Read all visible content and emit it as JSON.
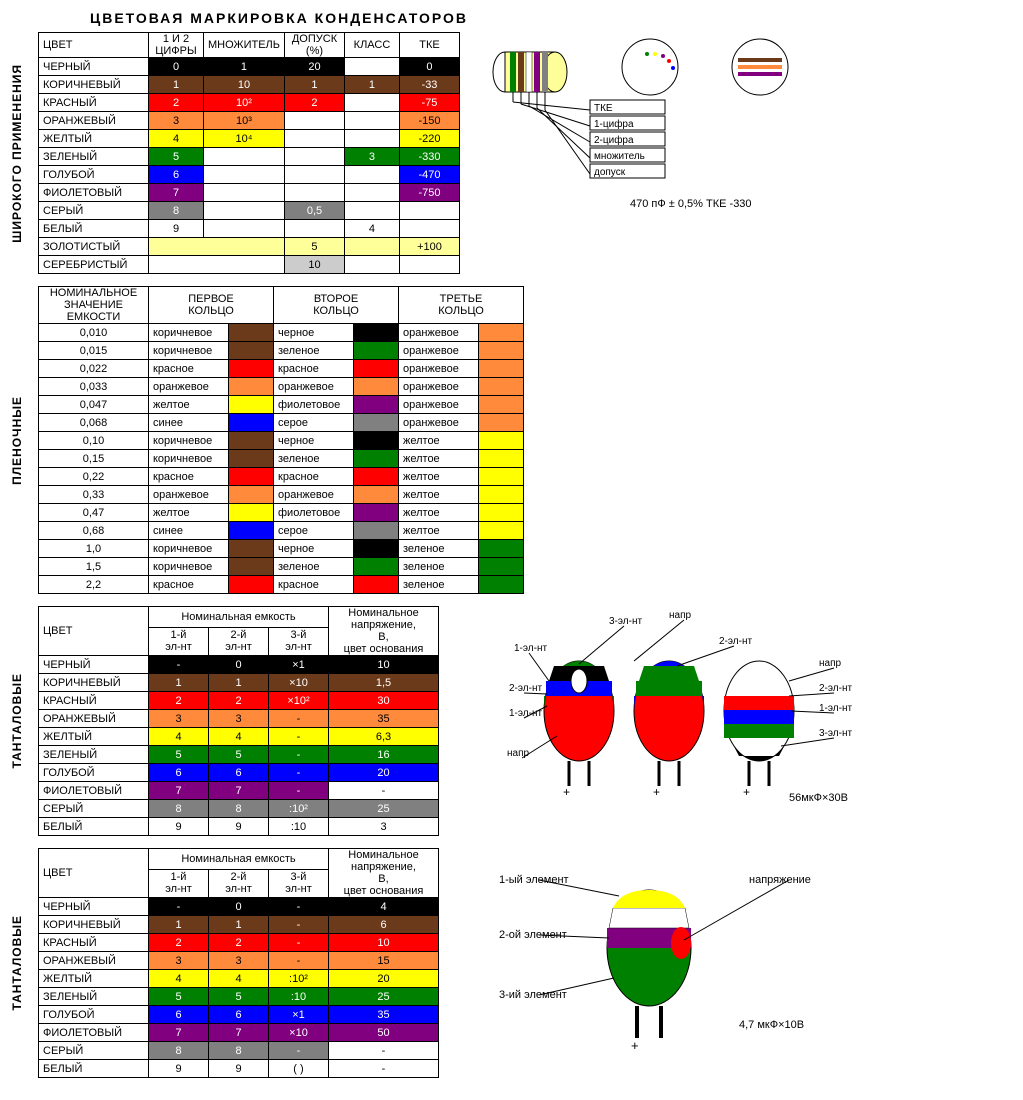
{
  "title": "ЦВЕТОВАЯ МАРКИРОВКА КОНДЕНСАТОРОВ",
  "colors": {
    "black": "#000000",
    "brown": "#6b3a1a",
    "red": "#ff0000",
    "orange": "#ff8a3c",
    "yellow": "#ffff00",
    "green": "#008000",
    "blue": "#0000ff",
    "violet": "#800080",
    "gray": "#808080",
    "white": "#ffffff",
    "gold": "#ffff99",
    "silver": "#cccccc"
  },
  "section1": {
    "label": "ШИРОКОГО ПРИМЕНЕНИЯ",
    "headers": [
      "ЦВЕТ",
      "1 И 2 ЦИФРЫ",
      "МНОЖИТЕЛЬ",
      "ДОПУСК (%)",
      "КЛАСС",
      "ТКЕ"
    ],
    "rows": [
      {
        "name": "ЧЕРНЫЙ",
        "c": "black",
        "dig": "0",
        "mul": "1",
        "dop": "20",
        "class": "",
        "tke": "0"
      },
      {
        "name": "КОРИЧНЕВЫЙ",
        "c": "brown",
        "dig": "1",
        "mul": "10",
        "dop": "1",
        "class": "1",
        "tke": "-33"
      },
      {
        "name": "КРАСНЫЙ",
        "c": "red",
        "dig": "2",
        "mul": "10²",
        "dop": "2",
        "class": "",
        "tke": "-75"
      },
      {
        "name": "ОРАНЖЕВЫЙ",
        "c": "orange",
        "dig": "3",
        "mul": "10³",
        "dop": "",
        "class": "",
        "tke": "-150"
      },
      {
        "name": "ЖЕЛТЫЙ",
        "c": "yellow",
        "dig": "4",
        "mul": "10⁴",
        "dop": "",
        "class": "",
        "tke": "-220"
      },
      {
        "name": "ЗЕЛЕНЫЙ",
        "c": "green",
        "dig": "5",
        "mul": "",
        "dop": "",
        "class": "3",
        "tke": "-330"
      },
      {
        "name": "ГОЛУБОЙ",
        "c": "blue",
        "dig": "6",
        "mul": "",
        "dop": "",
        "class": "",
        "tke": "-470"
      },
      {
        "name": "ФИОЛЕТОВЫЙ",
        "c": "violet",
        "dig": "7",
        "mul": "",
        "dop": "",
        "class": "",
        "tke": "-750"
      },
      {
        "name": "СЕРЫЙ",
        "c": "gray",
        "dig": "8",
        "mul": "",
        "dop": "0,5",
        "class": "",
        "tke": "",
        "dopOnly": true
      },
      {
        "name": "БЕЛЫЙ",
        "c": "white",
        "dig": "9",
        "mul": "",
        "dop": "",
        "class": "4",
        "tke": "",
        "plain": true
      },
      {
        "name": "ЗОЛОТИСТЫЙ",
        "c": "gold",
        "dig": "",
        "mul": "",
        "dop": "5",
        "class": "",
        "tke": "+100",
        "goldRow": true
      },
      {
        "name": "СЕРЕБРИСТЫЙ",
        "c": "silver",
        "dig": "",
        "mul": "",
        "dop": "10",
        "class": "",
        "tke": "",
        "silverRow": true
      }
    ],
    "diagramLabels": [
      "ТКЕ",
      "1-цифра",
      "2-цифра",
      "множитель",
      "допуск"
    ],
    "diagramCaption": "470 пФ ± 0,5% ТКЕ -330"
  },
  "section2": {
    "label": "ПЛЕНОЧНЫЕ",
    "headers": [
      "НОМИНАЛЬНОЕ ЗНАЧЕНИЕ ЕМКОСТИ",
      "ПЕРВОЕ КОЛЬЦО",
      "ВТОРОЕ КОЛЬЦО",
      "ТРЕТЬЕ КОЛЬЦО"
    ],
    "rows": [
      {
        "nom": "0,010",
        "r1": "коричневое",
        "c1": "brown",
        "r2": "черное",
        "c2": "black",
        "r3": "оранжевое",
        "c3": "orange"
      },
      {
        "nom": "0,015",
        "r1": "коричневое",
        "c1": "brown",
        "r2": "зеленое",
        "c2": "green",
        "r3": "оранжевое",
        "c3": "orange"
      },
      {
        "nom": "0,022",
        "r1": "красное",
        "c1": "red",
        "r2": "красное",
        "c2": "red",
        "r3": "оранжевое",
        "c3": "orange"
      },
      {
        "nom": "0,033",
        "r1": "оранжевое",
        "c1": "orange",
        "r2": "оранжевое",
        "c2": "orange",
        "r3": "оранжевое",
        "c3": "orange"
      },
      {
        "nom": "0,047",
        "r1": "желтое",
        "c1": "yellow",
        "r2": "фиолетовое",
        "c2": "violet",
        "r3": "оранжевое",
        "c3": "orange"
      },
      {
        "nom": "0,068",
        "r1": "синее",
        "c1": "blue",
        "r2": "серое",
        "c2": "gray",
        "r3": "оранжевое",
        "c3": "orange"
      },
      {
        "nom": "0,10",
        "r1": "коричневое",
        "c1": "brown",
        "r2": "черное",
        "c2": "black",
        "r3": "желтое",
        "c3": "yellow"
      },
      {
        "nom": "0,15",
        "r1": "коричневое",
        "c1": "brown",
        "r2": "зеленое",
        "c2": "green",
        "r3": "желтое",
        "c3": "yellow"
      },
      {
        "nom": "0,22",
        "r1": "красное",
        "c1": "red",
        "r2": "красное",
        "c2": "red",
        "r3": "желтое",
        "c3": "yellow"
      },
      {
        "nom": "0,33",
        "r1": "оранжевое",
        "c1": "orange",
        "r2": "оранжевое",
        "c2": "orange",
        "r3": "желтое",
        "c3": "yellow"
      },
      {
        "nom": "0,47",
        "r1": "желтое",
        "c1": "yellow",
        "r2": "фиолетовое",
        "c2": "violet",
        "r3": "желтое",
        "c3": "yellow"
      },
      {
        "nom": "0,68",
        "r1": "синее",
        "c1": "blue",
        "r2": "серое",
        "c2": "gray",
        "r3": "желтое",
        "c3": "yellow"
      },
      {
        "nom": "1,0",
        "r1": "коричневое",
        "c1": "brown",
        "r2": "черное",
        "c2": "black",
        "r3": "зеленое",
        "c3": "green"
      },
      {
        "nom": "1,5",
        "r1": "коричневое",
        "c1": "brown",
        "r2": "зеленое",
        "c2": "green",
        "r3": "зеленое",
        "c3": "green"
      },
      {
        "nom": "2,2",
        "r1": "красное",
        "c1": "red",
        "r2": "красное",
        "c2": "red",
        "r3": "зеленое",
        "c3": "green"
      }
    ]
  },
  "section3": {
    "label": "ТАНТАЛОВЫЕ",
    "topHeader": "Номинальная емкость",
    "headers": [
      "ЦВЕТ",
      "1-й эл-нт",
      "2-й эл-нт",
      "3-й эл-нт",
      "Номинальное напряжение, В, цвет основания"
    ],
    "rows": [
      {
        "name": "ЧЕРНЫЙ",
        "c": "black",
        "e1": "-",
        "e2": "0",
        "e3": "×1",
        "v": "10"
      },
      {
        "name": "КОРИЧНЕВЫЙ",
        "c": "brown",
        "e1": "1",
        "e2": "1",
        "e3": "×10",
        "v": "1,5"
      },
      {
        "name": "КРАСНЫЙ",
        "c": "red",
        "e1": "2",
        "e2": "2",
        "e3": "×10²",
        "v": "30"
      },
      {
        "name": "ОРАНЖЕВЫЙ",
        "c": "orange",
        "e1": "3",
        "e2": "3",
        "e3": "-",
        "v": "35"
      },
      {
        "name": "ЖЕЛТЫЙ",
        "c": "yellow",
        "e1": "4",
        "e2": "4",
        "e3": "-",
        "v": "6,3"
      },
      {
        "name": "ЗЕЛЕНЫЙ",
        "c": "green",
        "e1": "5",
        "e2": "5",
        "e3": "-",
        "v": "16"
      },
      {
        "name": "ГОЛУБОЙ",
        "c": "blue",
        "e1": "6",
        "e2": "6",
        "e3": "-",
        "v": "20"
      },
      {
        "name": "ФИОЛЕТОВЫЙ",
        "c": "violet",
        "e1": "7",
        "e2": "7",
        "e3": "-",
        "v": "-",
        "plainV": true
      },
      {
        "name": "СЕРЫЙ",
        "c": "gray",
        "e1": "8",
        "e2": "8",
        "e3": ":10²",
        "v": "25"
      },
      {
        "name": "БЕЛЫЙ",
        "c": "white",
        "e1": "9",
        "e2": "9",
        "e3": ":10",
        "v": "3",
        "plain": true
      }
    ],
    "diagLabels": [
      "3-эл-нт",
      "напр",
      "1-эл-нт",
      "2-эл-нт",
      "напр",
      "2-эл-нт",
      "2-эл-нт",
      "1-эл-нт",
      "1-эл-нт",
      "3-эл-нт",
      "напр"
    ],
    "diagCaption": "56мкФ×30В"
  },
  "section4": {
    "label": "ТАНТАЛОВЫЕ",
    "topHeader": "Номинальная емкость",
    "headers": [
      "ЦВЕТ",
      "1-й эл-нт",
      "2-й эл-нт",
      "3-й эл-нт",
      "Номинальное напряжение, В, цвет основания"
    ],
    "rows": [
      {
        "name": "ЧЕРНЫЙ",
        "c": "black",
        "e1": "-",
        "e2": "0",
        "e3": "-",
        "v": "4"
      },
      {
        "name": "КОРИЧНЕВЫЙ",
        "c": "brown",
        "e1": "1",
        "e2": "1",
        "e3": "-",
        "v": "6"
      },
      {
        "name": "КРАСНЫЙ",
        "c": "red",
        "e1": "2",
        "e2": "2",
        "e3": "-",
        "v": "10"
      },
      {
        "name": "ОРАНЖЕВЫЙ",
        "c": "orange",
        "e1": "3",
        "e2": "3",
        "e3": "-",
        "v": "15"
      },
      {
        "name": "ЖЕЛТЫЙ",
        "c": "yellow",
        "e1": "4",
        "e2": "4",
        "e3": ":10²",
        "v": "20"
      },
      {
        "name": "ЗЕЛЕНЫЙ",
        "c": "green",
        "e1": "5",
        "e2": "5",
        "e3": ":10",
        "v": "25"
      },
      {
        "name": "ГОЛУБОЙ",
        "c": "blue",
        "e1": "6",
        "e2": "6",
        "e3": "×1",
        "v": "35"
      },
      {
        "name": "ФИОЛЕТОВЫЙ",
        "c": "violet",
        "e1": "7",
        "e2": "7",
        "e3": "×10",
        "v": "50"
      },
      {
        "name": "СЕРЫЙ",
        "c": "gray",
        "e1": "8",
        "e2": "8",
        "e3": "-",
        "v": "-",
        "plainV": true
      },
      {
        "name": "БЕЛЫЙ",
        "c": "white",
        "e1": "9",
        "e2": "9",
        "e3": "( )",
        "v": "-",
        "plain": true,
        "plainV": true
      }
    ],
    "diagLabels": [
      "1-ый элемент",
      "напряжение",
      "2-ой элемент",
      "3-ий элемент"
    ],
    "diagCaption": "4,7 мкФ×10В"
  }
}
